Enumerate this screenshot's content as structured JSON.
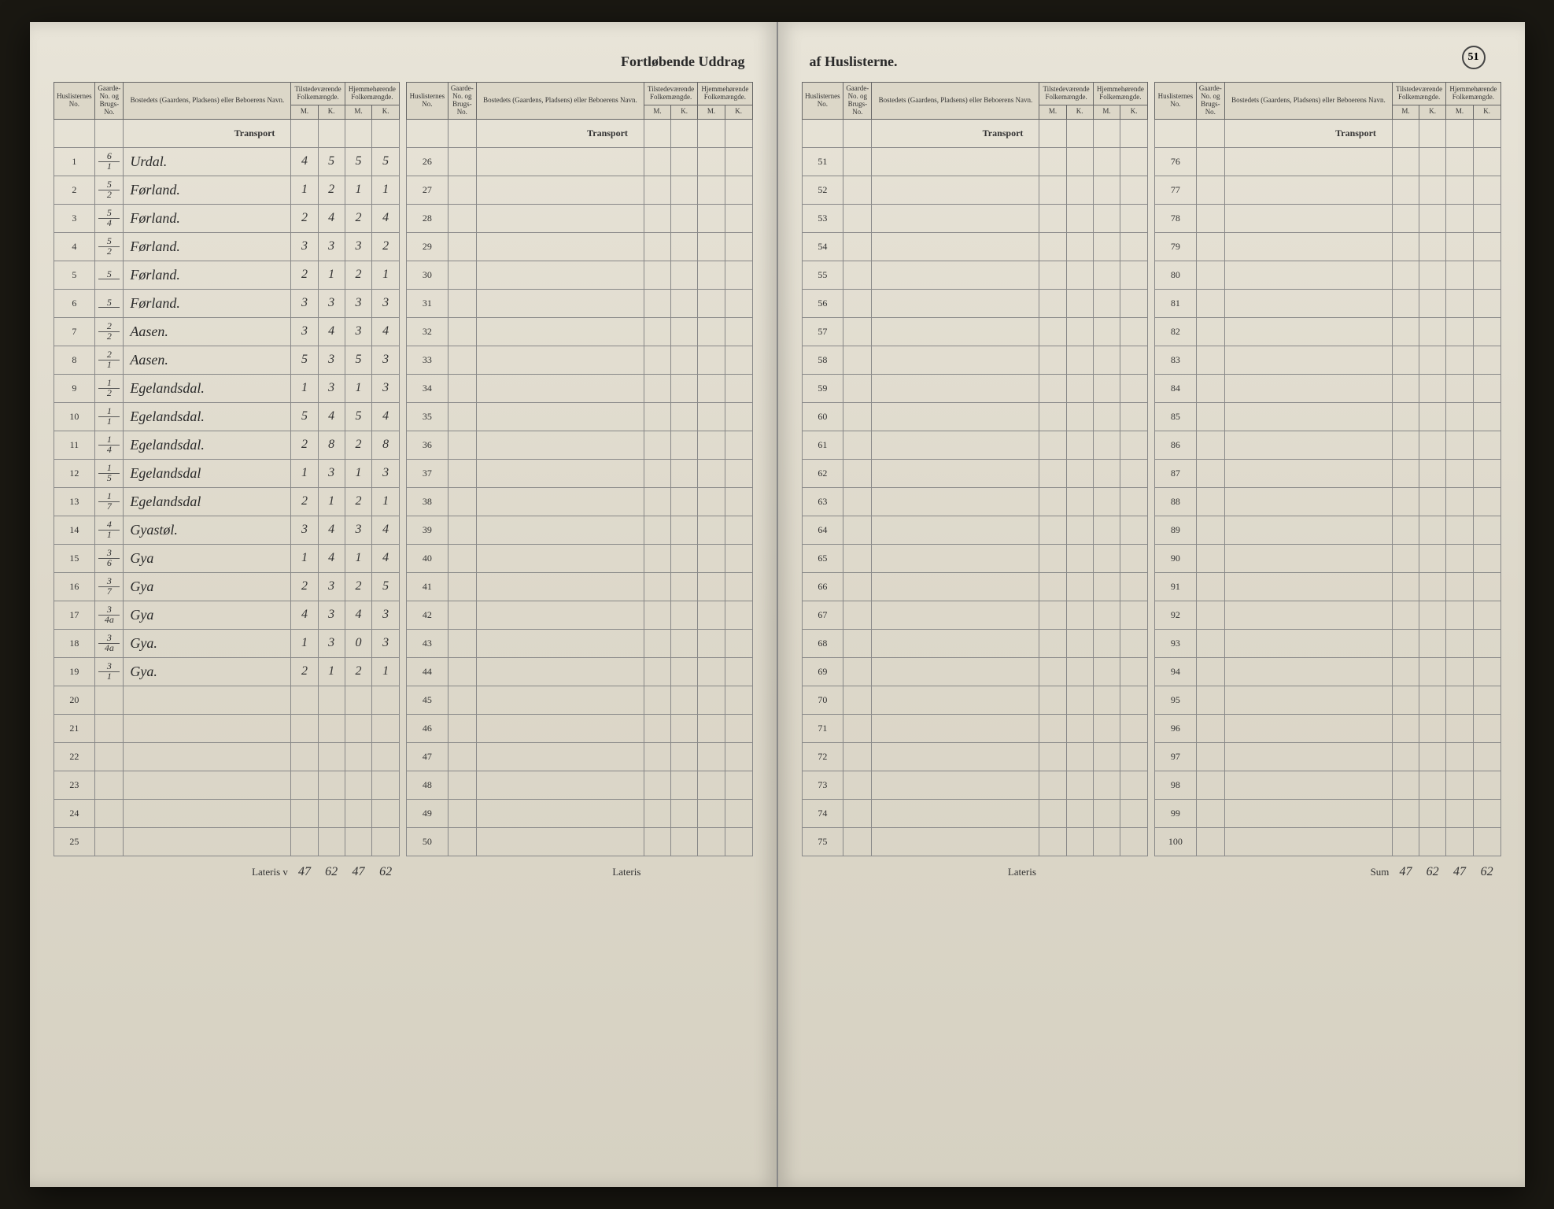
{
  "title_left": "Fortløbende Uddrag",
  "title_right": "af Huslisterne.",
  "page_number": "51",
  "headers": {
    "huslisternes": "Huslisternes No.",
    "gaarde": "Gaarde-No. og Brugs-No.",
    "bosted": "Bostedets (Gaardens, Pladsens) eller Beboerens Navn.",
    "tilstede": "Tilstedeværende Folkemængde.",
    "hjemme": "Hjemmehørende Folkemængde.",
    "m": "M.",
    "k": "K.",
    "transport": "Transport",
    "lateris": "Lateris",
    "sum": "Sum"
  },
  "rows_left_panel1": [
    {
      "n": "1",
      "g1": "6",
      "g2": "1",
      "name": "Urdal.",
      "tm": "4",
      "tk": "5",
      "hm": "5",
      "hk": "5"
    },
    {
      "n": "2",
      "g1": "5",
      "g2": "2",
      "name": "Førland.",
      "tm": "1",
      "tk": "2",
      "hm": "1",
      "hk": "1"
    },
    {
      "n": "3",
      "g1": "5",
      "g2": "4",
      "name": "Førland.",
      "tm": "2",
      "tk": "4",
      "hm": "2",
      "hk": "4"
    },
    {
      "n": "4",
      "g1": "5",
      "g2": "2",
      "name": "Førland.",
      "tm": "3",
      "tk": "3",
      "hm": "3",
      "hk": "2"
    },
    {
      "n": "5",
      "g1": "5",
      "g2": "",
      "name": "Førland.",
      "tm": "2",
      "tk": "1",
      "hm": "2",
      "hk": "1"
    },
    {
      "n": "6",
      "g1": "5",
      "g2": "",
      "name": "Førland.",
      "tm": "3",
      "tk": "3",
      "hm": "3",
      "hk": "3"
    },
    {
      "n": "7",
      "g1": "2",
      "g2": "2",
      "name": "Aasen.",
      "tm": "3",
      "tk": "4",
      "hm": "3",
      "hk": "4"
    },
    {
      "n": "8",
      "g1": "2",
      "g2": "1",
      "name": "Aasen.",
      "tm": "5",
      "tk": "3",
      "hm": "5",
      "hk": "3"
    },
    {
      "n": "9",
      "g1": "1",
      "g2": "2",
      "name": "Egelandsdal.",
      "tm": "1",
      "tk": "3",
      "hm": "1",
      "hk": "3"
    },
    {
      "n": "10",
      "g1": "1",
      "g2": "1",
      "name": "Egelandsdal.",
      "tm": "5",
      "tk": "4",
      "hm": "5",
      "hk": "4"
    },
    {
      "n": "11",
      "g1": "1",
      "g2": "4",
      "name": "Egelandsdal.",
      "tm": "2",
      "tk": "8",
      "hm": "2",
      "hk": "8"
    },
    {
      "n": "12",
      "g1": "1",
      "g2": "5",
      "name": "Egelandsdal",
      "tm": "1",
      "tk": "3",
      "hm": "1",
      "hk": "3"
    },
    {
      "n": "13",
      "g1": "1",
      "g2": "7",
      "name": "Egelandsdal",
      "tm": "2",
      "tk": "1",
      "hm": "2",
      "hk": "1"
    },
    {
      "n": "14",
      "g1": "4",
      "g2": "1",
      "name": "Gyastøl.",
      "tm": "3",
      "tk": "4",
      "hm": "3",
      "hk": "4"
    },
    {
      "n": "15",
      "g1": "3",
      "g2": "6",
      "name": "Gya",
      "tm": "1",
      "tk": "4",
      "hm": "1",
      "hk": "4"
    },
    {
      "n": "16",
      "g1": "3",
      "g2": "7",
      "name": "Gya",
      "tm": "2",
      "tk": "3",
      "hm": "2",
      "hk": "5"
    },
    {
      "n": "17",
      "g1": "3",
      "g2": "4a",
      "name": "Gya",
      "tm": "4",
      "tk": "3",
      "hm": "4",
      "hk": "3"
    },
    {
      "n": "18",
      "g1": "3",
      "g2": "4a",
      "name": "Gya.",
      "tm": "1",
      "tk": "3",
      "hm": "0",
      "hk": "3"
    },
    {
      "n": "19",
      "g1": "3",
      "g2": "1",
      "name": "Gya.",
      "tm": "2",
      "tk": "1",
      "hm": "2",
      "hk": "1"
    },
    {
      "n": "20",
      "g1": "",
      "g2": "",
      "name": "",
      "tm": "",
      "tk": "",
      "hm": "",
      "hk": ""
    },
    {
      "n": "21",
      "g1": "",
      "g2": "",
      "name": "",
      "tm": "",
      "tk": "",
      "hm": "",
      "hk": ""
    },
    {
      "n": "22",
      "g1": "",
      "g2": "",
      "name": "",
      "tm": "",
      "tk": "",
      "hm": "",
      "hk": ""
    },
    {
      "n": "23",
      "g1": "",
      "g2": "",
      "name": "",
      "tm": "",
      "tk": "",
      "hm": "",
      "hk": ""
    },
    {
      "n": "24",
      "g1": "",
      "g2": "",
      "name": "",
      "tm": "",
      "tk": "",
      "hm": "",
      "hk": ""
    },
    {
      "n": "25",
      "g1": "",
      "g2": "",
      "name": "",
      "tm": "",
      "tk": "",
      "hm": "",
      "hk": ""
    }
  ],
  "rows_left_panel2": [
    26,
    27,
    28,
    29,
    30,
    31,
    32,
    33,
    34,
    35,
    36,
    37,
    38,
    39,
    40,
    41,
    42,
    43,
    44,
    45,
    46,
    47,
    48,
    49,
    50
  ],
  "rows_right_panel1": [
    51,
    52,
    53,
    54,
    55,
    56,
    57,
    58,
    59,
    60,
    61,
    62,
    63,
    64,
    65,
    66,
    67,
    68,
    69,
    70,
    71,
    72,
    73,
    74,
    75
  ],
  "rows_right_panel2": [
    76,
    77,
    78,
    79,
    80,
    81,
    82,
    83,
    84,
    85,
    86,
    87,
    88,
    89,
    90,
    91,
    92,
    93,
    94,
    95,
    96,
    97,
    98,
    99,
    100
  ],
  "totals_left": {
    "tm": "47",
    "tk": "62",
    "hm": "47",
    "hk": "62"
  },
  "totals_right": {
    "tm": "47",
    "tk": "62",
    "hm": "47",
    "hk": "62"
  },
  "colors": {
    "page_bg": "#e8e4d8",
    "border": "#666666",
    "row_border": "#888888",
    "text": "#333333",
    "handwriting": "#2a2a2a"
  }
}
